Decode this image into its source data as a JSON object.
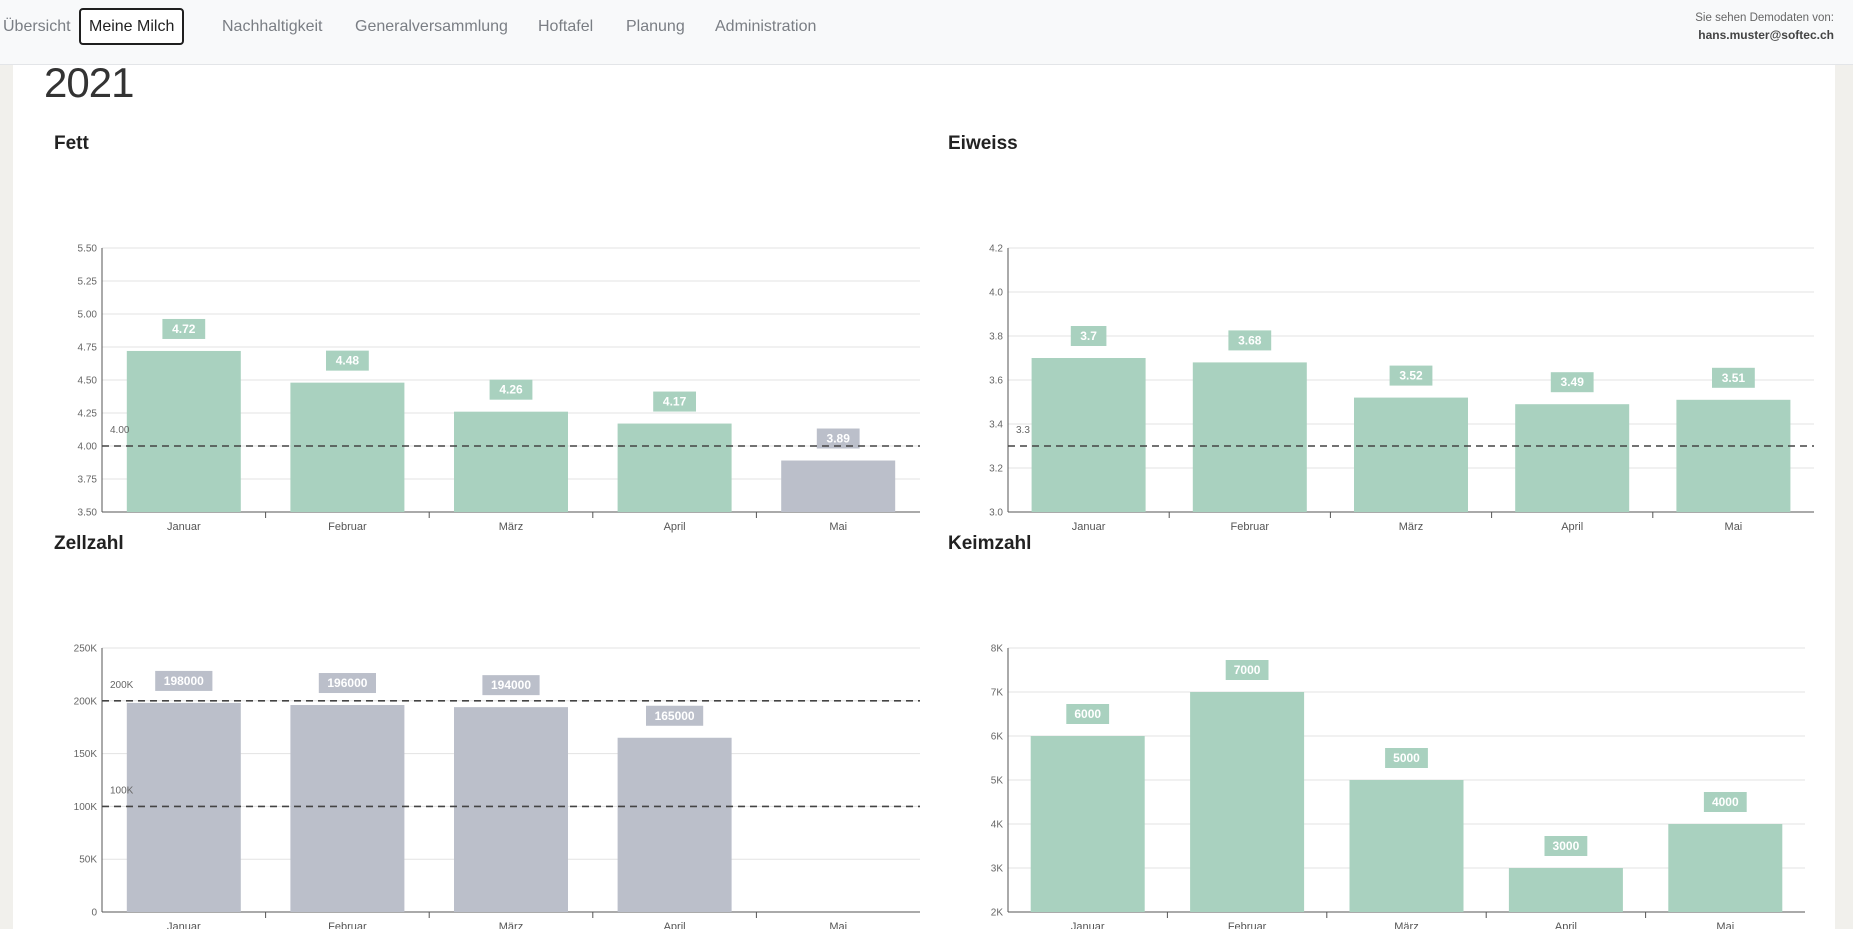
{
  "nav": {
    "items": [
      {
        "label": "Übersicht",
        "active": false
      },
      {
        "label": "Meine Milch",
        "active": true
      },
      {
        "label": "Nachhaltigkeit",
        "active": false
      },
      {
        "label": "Generalversammlung",
        "active": false
      },
      {
        "label": "Hoftafel",
        "active": false
      },
      {
        "label": "Planung",
        "active": false
      },
      {
        "label": "Administration",
        "active": false
      }
    ],
    "demo_notice": "Sie sehen Demodaten von:",
    "user_email": "hans.muster@softec.ch"
  },
  "page": {
    "year": "2021"
  },
  "colors": {
    "green": "#a9d1bf",
    "gray": "#bbbfca",
    "grid": "#e3e3e3",
    "axis": "#555555"
  },
  "chart_data": [
    {
      "type": "bar",
      "title": "Fett",
      "categories": [
        "Januar",
        "Februar",
        "März",
        "April",
        "Mai"
      ],
      "values": [
        4.72,
        4.48,
        4.26,
        4.17,
        3.89
      ],
      "ylim": [
        3.5,
        5.5
      ],
      "yticks": [
        3.5,
        3.75,
        4.0,
        4.25,
        4.5,
        4.75,
        5.0,
        5.25,
        5.5
      ],
      "ytick_labels": [
        "3.50",
        "3.75",
        "4.00",
        "4.25",
        "4.50",
        "4.75",
        "5.00",
        "5.25",
        "5.50"
      ],
      "value_labels": [
        "4.72",
        "4.48",
        "4.26",
        "4.17",
        "3.89"
      ],
      "bar_colors": [
        "green",
        "green",
        "green",
        "green",
        "gray"
      ],
      "reference_lines": [
        {
          "value": 4.0,
          "label": "4.00"
        }
      ],
      "grid": true,
      "xlabel": "",
      "ylabel": ""
    },
    {
      "type": "bar",
      "title": "Eiweiss",
      "categories": [
        "Januar",
        "Februar",
        "März",
        "April",
        "Mai"
      ],
      "values": [
        3.7,
        3.68,
        3.52,
        3.49,
        3.51
      ],
      "ylim": [
        3.0,
        4.2
      ],
      "yticks": [
        3.0,
        3.2,
        3.4,
        3.6,
        3.8,
        4.0,
        4.2
      ],
      "ytick_labels": [
        "3.0",
        "3.2",
        "3.4",
        "3.6",
        "3.8",
        "4.0",
        "4.2"
      ],
      "value_labels": [
        "3.7",
        "3.68",
        "3.52",
        "3.49",
        "3.51"
      ],
      "bar_colors": [
        "green",
        "green",
        "green",
        "green",
        "green"
      ],
      "reference_lines": [
        {
          "value": 3.3,
          "label": "3.3"
        }
      ],
      "grid": true,
      "xlabel": "",
      "ylabel": ""
    },
    {
      "type": "bar",
      "title": "Zellzahl",
      "categories": [
        "Januar",
        "Februar",
        "März",
        "April",
        "Mai"
      ],
      "values": [
        198000,
        196000,
        194000,
        165000,
        null
      ],
      "ylim": [
        0,
        250000
      ],
      "yticks": [
        0,
        50000,
        100000,
        150000,
        200000,
        250000
      ],
      "ytick_labels": [
        "0",
        "50K",
        "100K",
        "150K",
        "200K",
        "250K"
      ],
      "value_labels": [
        "198000",
        "196000",
        "194000",
        "165000",
        ""
      ],
      "bar_colors": [
        "gray",
        "gray",
        "gray",
        "gray",
        "gray"
      ],
      "reference_lines": [
        {
          "value": 200000,
          "label": "200K"
        },
        {
          "value": 100000,
          "label": "100K"
        }
      ],
      "grid": true,
      "xlabel": "",
      "ylabel": ""
    },
    {
      "type": "bar",
      "title": "Keimzahl",
      "categories": [
        "Januar",
        "Februar",
        "März",
        "April",
        "Mai"
      ],
      "values": [
        6000,
        7000,
        5000,
        3000,
        4000
      ],
      "ylim": [
        2000,
        8000
      ],
      "yticks": [
        2000,
        3000,
        4000,
        5000,
        6000,
        7000,
        8000
      ],
      "ytick_labels": [
        "2K",
        "3K",
        "4K",
        "5K",
        "6K",
        "7K",
        "8K"
      ],
      "value_labels": [
        "6000",
        "7000",
        "5000",
        "3000",
        "4000"
      ],
      "bar_colors": [
        "green",
        "green",
        "green",
        "green",
        "green"
      ],
      "reference_lines": [],
      "grid": true,
      "xlabel": "",
      "ylabel": ""
    }
  ]
}
